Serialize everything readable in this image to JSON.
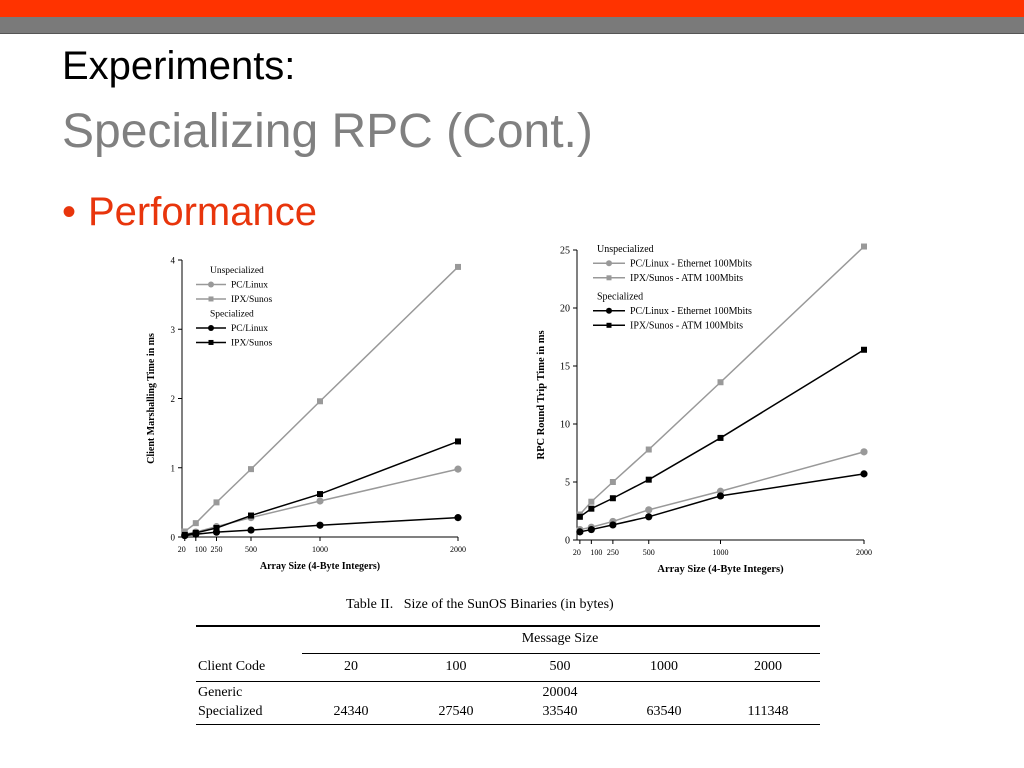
{
  "slide": {
    "title_line1": "Experiments:",
    "title_line2": "Specializing RPC (Cont.)",
    "bullet": "Performance",
    "colors": {
      "top_bar": "#ff3300",
      "second_bar": "#7a7a7a",
      "bullet": "#e8350c",
      "subtitle": "#808080"
    }
  },
  "chart_data": [
    {
      "type": "line",
      "xlabel": "Array Size (4-Byte Integers)",
      "ylabel": "Client Marshalling Time in ms",
      "x": [
        20,
        100,
        250,
        500,
        1000,
        2000
      ],
      "x_tick_labels": [
        "20",
        "100",
        "250",
        "500",
        "1000",
        "2000"
      ],
      "xlim": [
        0,
        2000
      ],
      "ylim": [
        0,
        4
      ],
      "y_ticks": [
        0,
        1,
        2,
        3,
        4
      ],
      "legend_headers": [
        "Unspecialized",
        "Specialized"
      ],
      "legend_position": "top-left",
      "series": [
        {
          "name": "PC/Linux",
          "group": "Unspecialized",
          "marker": "circle",
          "color": "#999999",
          "values": [
            0.04,
            0.07,
            0.15,
            0.28,
            0.52,
            0.98
          ]
        },
        {
          "name": "IPX/Sunos",
          "group": "Unspecialized",
          "marker": "square",
          "color": "#999999",
          "values": [
            0.08,
            0.2,
            0.5,
            0.98,
            1.96,
            3.9
          ]
        },
        {
          "name": "PC/Linux",
          "group": "Specialized",
          "marker": "circle",
          "color": "#000000",
          "values": [
            0.02,
            0.04,
            0.07,
            0.1,
            0.17,
            0.28
          ]
        },
        {
          "name": "IPX/Sunos",
          "group": "Specialized",
          "marker": "square",
          "color": "#000000",
          "values": [
            0.03,
            0.06,
            0.13,
            0.31,
            0.62,
            1.38
          ]
        }
      ]
    },
    {
      "type": "line",
      "xlabel": "Array Size (4-Byte Integers)",
      "ylabel": "RPC Round Trip Time in ms",
      "x": [
        20,
        100,
        250,
        500,
        1000,
        2000
      ],
      "x_tick_labels": [
        "20",
        "100",
        "250",
        "500",
        "1000",
        "2000"
      ],
      "xlim": [
        0,
        2000
      ],
      "ylim": [
        0,
        25
      ],
      "y_ticks": [
        0,
        5,
        10,
        15,
        20,
        25
      ],
      "legend_headers": [
        "Unspecialized",
        "Specialized"
      ],
      "legend_position": "top-left",
      "series": [
        {
          "name": "PC/Linux - Ethernet 100Mbits",
          "group": "Unspecialized",
          "marker": "circle",
          "color": "#999999",
          "values": [
            0.9,
            1.1,
            1.6,
            2.6,
            4.2,
            7.6
          ]
        },
        {
          "name": "IPX/Sunos - ATM 100Mbits",
          "group": "Unspecialized",
          "marker": "square",
          "color": "#999999",
          "values": [
            2.2,
            3.3,
            5.0,
            7.8,
            13.6,
            25.3
          ]
        },
        {
          "name": "PC/Linux - Ethernet 100Mbits",
          "group": "Specialized",
          "marker": "circle",
          "color": "#000000",
          "values": [
            0.7,
            0.9,
            1.3,
            2.0,
            3.8,
            5.7
          ]
        },
        {
          "name": "IPX/Sunos - ATM 100Mbits",
          "group": "Specialized",
          "marker": "square",
          "color": "#000000",
          "values": [
            2.0,
            2.7,
            3.6,
            5.2,
            8.8,
            16.4
          ]
        }
      ]
    },
    {
      "type": "table",
      "caption": "Table II.   Size of the SunOS Binaries (in bytes)",
      "spanner": "Message Size",
      "columns": [
        "Client Code",
        "20",
        "100",
        "500",
        "1000",
        "2000"
      ],
      "rows": [
        [
          "Generic",
          "",
          "",
          "20004",
          "",
          ""
        ],
        [
          "Specialized",
          "24340",
          "27540",
          "33540",
          "63540",
          "111348"
        ]
      ]
    }
  ]
}
